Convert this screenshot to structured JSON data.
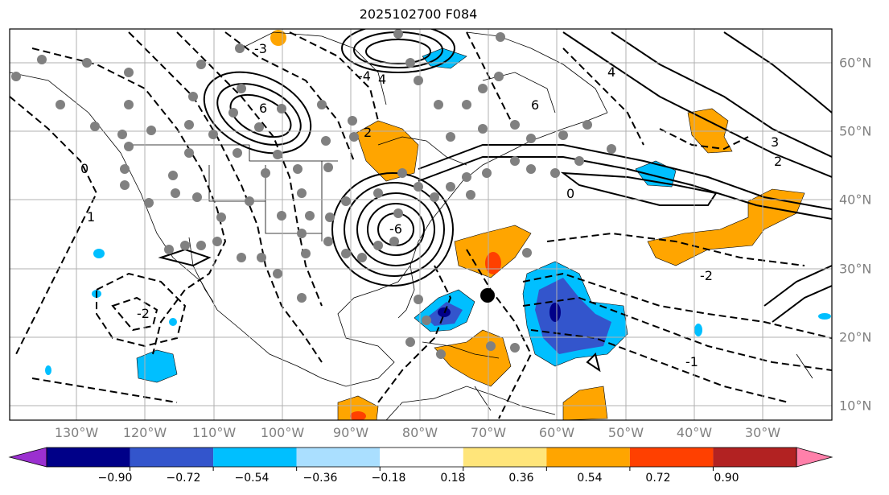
{
  "title": "2025102700 F084",
  "lon_labels": [
    "130°W",
    "120°W",
    "110°W",
    "100°W",
    "90°W",
    "80°W",
    "70°W",
    "60°W",
    "50°W",
    "40°W",
    "30°W"
  ],
  "lat_labels": [
    "60°N",
    "50°N",
    "40°N",
    "30°N",
    "20°N",
    "10°N"
  ],
  "colorbar": {
    "ticks": [
      "−0.90",
      "−0.72",
      "−0.54",
      "−0.36",
      "−0.18",
      "0.18",
      "0.36",
      "0.54",
      "0.72",
      "0.90"
    ],
    "colors": [
      "#9b30d0",
      "#000088",
      "#3355cc",
      "#00bfff",
      "#aadfff",
      "#ffffff",
      "#ffe57a",
      "#ffa500",
      "#ff4000",
      "#b22222",
      "#ff80aa"
    ]
  },
  "colors": {
    "land_outline": "#000000",
    "contour": "#000000",
    "grid": "#b0b0b0",
    "station_dot": "#808080",
    "storm_dot": "#000000"
  },
  "contour_labels": [
    "6",
    "4",
    "2",
    "0",
    "-2",
    "-4",
    "-3",
    "-6",
    "1",
    "-1",
    "3",
    "2",
    "0",
    "-2",
    "6",
    "4"
  ],
  "map": {
    "lon_range": [
      -140,
      -20
    ],
    "lat_range": [
      8,
      65
    ]
  }
}
